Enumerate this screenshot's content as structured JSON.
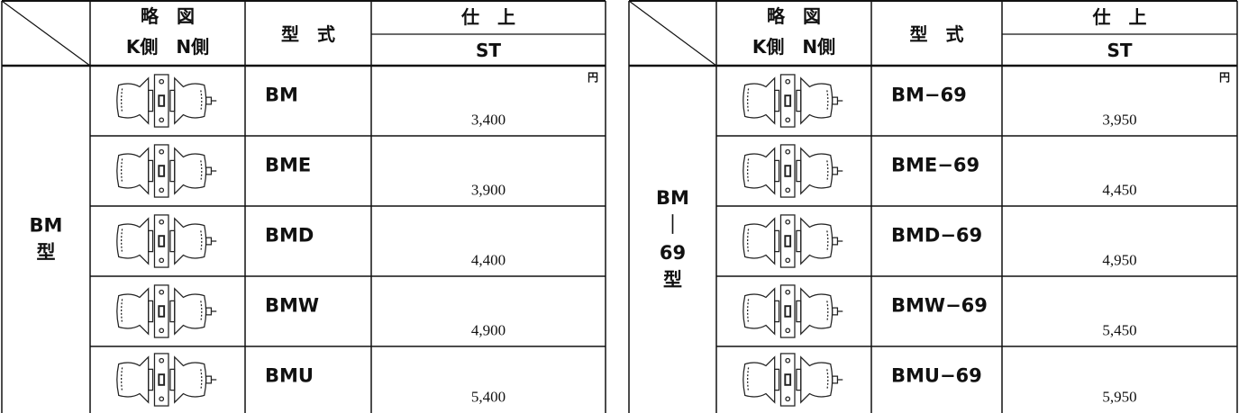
{
  "tables": [
    {
      "header": {
        "diagram": [
          "略　図",
          "K側　N側"
        ],
        "model": "型　式",
        "finish": "仕　上",
        "finish_type": "ST"
      },
      "category": [
        "BM",
        "型"
      ],
      "unit": "円",
      "rows": [
        {
          "model": "BM",
          "price": "3,400"
        },
        {
          "model": "BME",
          "price": "3,900"
        },
        {
          "model": "BMD",
          "price": "4,400"
        },
        {
          "model": "BMW",
          "price": "4,900"
        },
        {
          "model": "BMU",
          "price": "5,400"
        }
      ]
    },
    {
      "header": {
        "diagram": [
          "略　図",
          "K側　N側"
        ],
        "model": "型　式",
        "finish": "仕　上",
        "finish_type": "ST"
      },
      "category": [
        "BM",
        "｜",
        "69",
        "型"
      ],
      "unit": "円",
      "rows": [
        {
          "model": "BM−69",
          "price": "3,950"
        },
        {
          "model": "BME−69",
          "price": "4,450"
        },
        {
          "model": "BMD−69",
          "price": "4,950"
        },
        {
          "model": "BMW−69",
          "price": "5,450"
        },
        {
          "model": "BMU−69",
          "price": "5,950"
        }
      ]
    }
  ]
}
